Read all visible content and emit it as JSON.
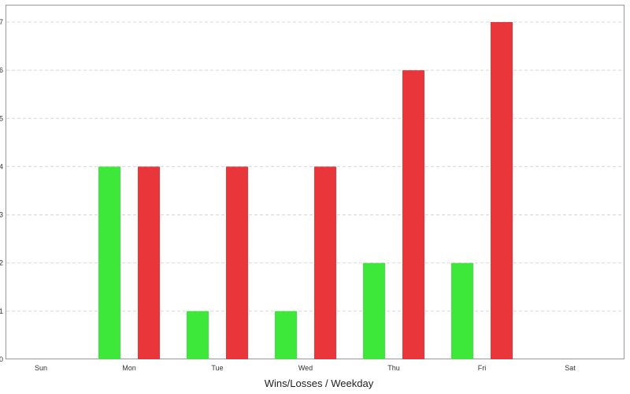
{
  "chart_data": {
    "type": "bar",
    "title": "",
    "xlabel": "Wins/Losses / Weekday",
    "ylabel": "",
    "categories": [
      "Sun",
      "Mon",
      "Tue",
      "Wed",
      "Thu",
      "Fri",
      "Sat"
    ],
    "series": [
      {
        "color": "#3ee83a",
        "values": [
          0,
          4,
          1,
          1,
          2,
          2,
          0
        ]
      },
      {
        "color": "#e8363a",
        "values": [
          0,
          4,
          4,
          4,
          6,
          7,
          0
        ]
      }
    ],
    "ylim": [
      0,
      7
    ],
    "yticks": [
      "0",
      "1",
      "2",
      "3",
      "4",
      "5",
      "6",
      "7"
    ],
    "grid": true,
    "legend": "none"
  }
}
